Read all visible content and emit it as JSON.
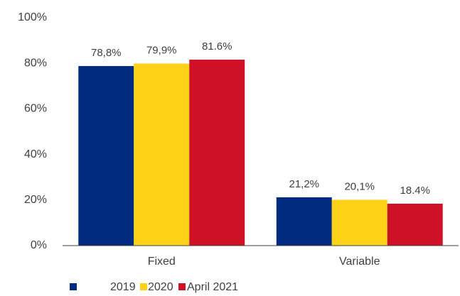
{
  "chart_data": {
    "type": "bar",
    "categories": [
      "Fixed",
      "Variable"
    ],
    "series": [
      {
        "name": "2019",
        "color": "#002b7f",
        "values": [
          78.8,
          21.2
        ],
        "value_labels": [
          "78,8%",
          "21,2%"
        ]
      },
      {
        "name": "2020",
        "color": "#fcd116",
        "values": [
          79.9,
          20.1
        ],
        "value_labels": [
          "79,9%",
          "20,1%"
        ]
      },
      {
        "name": "April 2021",
        "color": "#ce1126",
        "values": [
          81.6,
          18.4
        ],
        "value_labels": [
          "81.6%",
          "18.4%"
        ]
      }
    ],
    "ylim": [
      0,
      100
    ],
    "yticks": [
      {
        "value": 0,
        "label": "0%"
      },
      {
        "value": 20,
        "label": "20%"
      },
      {
        "value": 40,
        "label": "40%"
      },
      {
        "value": 60,
        "label": "60%"
      },
      {
        "value": 80,
        "label": "80%"
      },
      {
        "value": 100,
        "label": "100%"
      }
    ],
    "grid": false,
    "legend": "bottom"
  }
}
